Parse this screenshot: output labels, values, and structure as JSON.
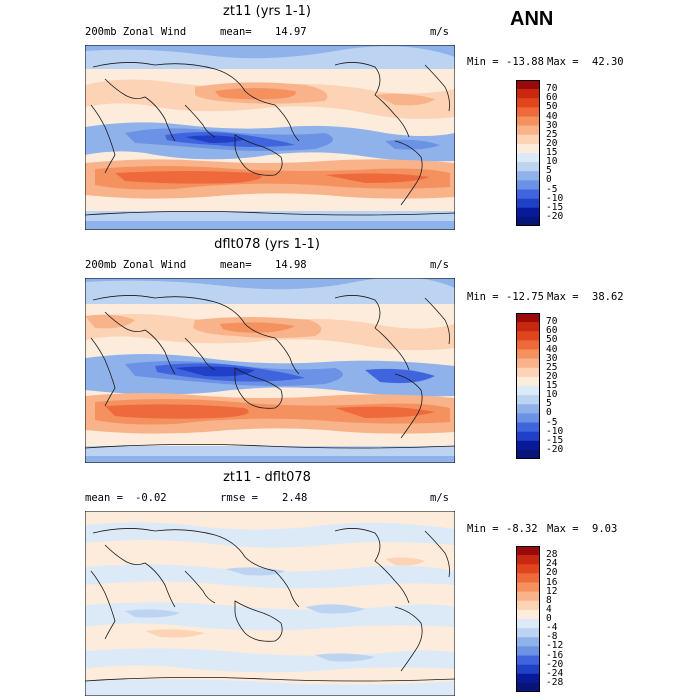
{
  "season": "ANN",
  "panels": [
    {
      "title": "zt11 (yrs 1-1)",
      "left_label": "200mb Zonal Wind",
      "stat_label": "mean=",
      "stat_value": "14.97",
      "units": "m/s",
      "min_label": "Min =",
      "min_value": "-13.88",
      "max_label": "Max =",
      "max_value": "42.30",
      "levels": [
        "70",
        "60",
        "50",
        "40",
        "30",
        "25",
        "20",
        "15",
        "10",
        "5",
        "0",
        "-5",
        "-10",
        "-15",
        "-20"
      ]
    },
    {
      "title": "dflt078 (yrs 1-1)",
      "left_label": "200mb Zonal Wind",
      "stat_label": "mean=",
      "stat_value": "14.98",
      "units": "m/s",
      "min_label": "Min =",
      "min_value": "-12.75",
      "max_label": "Max =",
      "max_value": "38.62",
      "levels": [
        "70",
        "60",
        "50",
        "40",
        "30",
        "25",
        "20",
        "15",
        "10",
        "5",
        "0",
        "-5",
        "-10",
        "-15",
        "-20"
      ]
    },
    {
      "title": "zt11 - dflt078",
      "left_label": "mean =",
      "left_value": "-0.02",
      "stat_label": "rmse =",
      "stat_value": "2.48",
      "units": "m/s",
      "min_label": "Min =",
      "min_value": "-8.32",
      "max_label": "Max =",
      "max_value": "9.03",
      "levels": [
        "28",
        "24",
        "20",
        "16",
        "12",
        "8",
        "4",
        "0",
        "-4",
        "-8",
        "-12",
        "-16",
        "-20",
        "-24",
        "-28"
      ]
    }
  ],
  "colors": {
    "abs_scale": [
      "#9b0a0a",
      "#c8280f",
      "#e0451e",
      "#ee6a3c",
      "#f5915f",
      "#f9b38a",
      "#fcd3b5",
      "#fdecdc",
      "#dce9f7",
      "#bcd3f2",
      "#8fb2eb",
      "#6c92e6",
      "#3f64dd",
      "#2040c8",
      "#081a98",
      "#06157a"
    ],
    "diff_scale": [
      "#9b0a0a",
      "#c8280f",
      "#e0451e",
      "#ee6a3c",
      "#f5915f",
      "#f9b38a",
      "#fcd3b5",
      "#fdecdc",
      "#dce9f7",
      "#bcd3f2",
      "#8fb2eb",
      "#6c92e6",
      "#3f64dd",
      "#2040c8",
      "#081a98",
      "#06157a"
    ]
  }
}
